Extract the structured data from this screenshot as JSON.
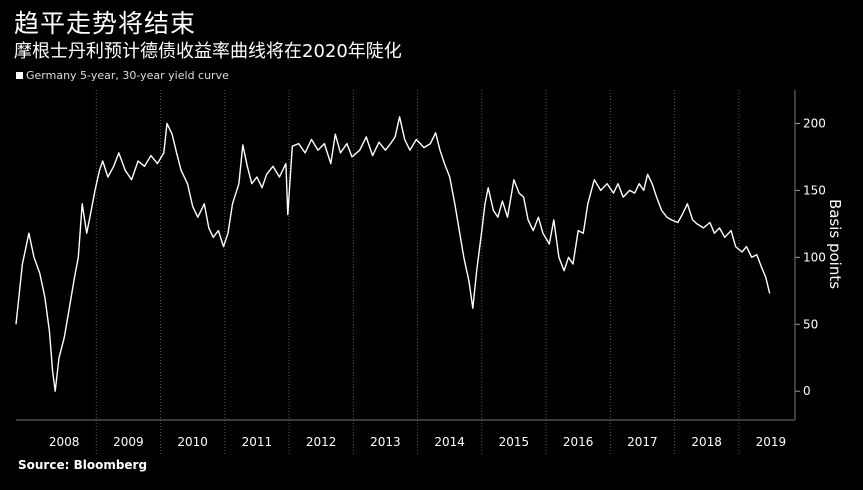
{
  "title": "趋平走势将结束",
  "subtitle": "摩根士丹利预计德债收益率曲线将在2020年陡化",
  "source": "Source: Bloomberg",
  "chart_data": {
    "type": "line",
    "legend_placement": "top-left",
    "grid": "vertical lines at year boundaries",
    "series": [
      {
        "name": "Germany 5-year, 30-year yield curve",
        "color": "#ffffff",
        "points": [
          [
            2007.75,
            50
          ],
          [
            2007.85,
            95
          ],
          [
            2007.95,
            118
          ],
          [
            2008.03,
            100
          ],
          [
            2008.12,
            88
          ],
          [
            2008.2,
            70
          ],
          [
            2008.27,
            45
          ],
          [
            2008.32,
            15
          ],
          [
            2008.36,
            0
          ],
          [
            2008.42,
            25
          ],
          [
            2008.5,
            40
          ],
          [
            2008.58,
            62
          ],
          [
            2008.66,
            85
          ],
          [
            2008.72,
            100
          ],
          [
            2008.78,
            140
          ],
          [
            2008.85,
            118
          ],
          [
            2008.9,
            130
          ],
          [
            2008.98,
            150
          ],
          [
            2009.05,
            165
          ],
          [
            2009.1,
            172
          ],
          [
            2009.18,
            160
          ],
          [
            2009.27,
            168
          ],
          [
            2009.35,
            178
          ],
          [
            2009.45,
            165
          ],
          [
            2009.55,
            158
          ],
          [
            2009.65,
            172
          ],
          [
            2009.75,
            168
          ],
          [
            2009.85,
            176
          ],
          [
            2009.95,
            170
          ],
          [
            2010.05,
            178
          ],
          [
            2010.1,
            200
          ],
          [
            2010.18,
            192
          ],
          [
            2010.25,
            178
          ],
          [
            2010.32,
            165
          ],
          [
            2010.42,
            155
          ],
          [
            2010.5,
            138
          ],
          [
            2010.58,
            130
          ],
          [
            2010.68,
            140
          ],
          [
            2010.75,
            122
          ],
          [
            2010.82,
            115
          ],
          [
            2010.9,
            120
          ],
          [
            2010.98,
            108
          ],
          [
            2011.05,
            118
          ],
          [
            2011.12,
            140
          ],
          [
            2011.22,
            155
          ],
          [
            2011.28,
            184
          ],
          [
            2011.35,
            168
          ],
          [
            2011.42,
            155
          ],
          [
            2011.5,
            160
          ],
          [
            2011.58,
            152
          ],
          [
            2011.65,
            162
          ],
          [
            2011.75,
            168
          ],
          [
            2011.85,
            160
          ],
          [
            2011.95,
            170
          ],
          [
            2011.98,
            132
          ],
          [
            2012.05,
            183
          ],
          [
            2012.15,
            185
          ],
          [
            2012.25,
            178
          ],
          [
            2012.35,
            188
          ],
          [
            2012.45,
            180
          ],
          [
            2012.55,
            185
          ],
          [
            2012.65,
            170
          ],
          [
            2012.72,
            192
          ],
          [
            2012.8,
            178
          ],
          [
            2012.9,
            185
          ],
          [
            2012.98,
            175
          ],
          [
            2013.1,
            180
          ],
          [
            2013.2,
            190
          ],
          [
            2013.3,
            176
          ],
          [
            2013.4,
            186
          ],
          [
            2013.5,
            180
          ],
          [
            2013.58,
            185
          ],
          [
            2013.65,
            190
          ],
          [
            2013.72,
            205
          ],
          [
            2013.8,
            188
          ],
          [
            2013.88,
            180
          ],
          [
            2013.98,
            188
          ],
          [
            2014.1,
            182
          ],
          [
            2014.2,
            185
          ],
          [
            2014.28,
            193
          ],
          [
            2014.35,
            180
          ],
          [
            2014.42,
            170
          ],
          [
            2014.5,
            160
          ],
          [
            2014.58,
            140
          ],
          [
            2014.65,
            120
          ],
          [
            2014.72,
            100
          ],
          [
            2014.8,
            82
          ],
          [
            2014.86,
            62
          ],
          [
            2014.92,
            90
          ],
          [
            2015.0,
            120
          ],
          [
            2015.05,
            140
          ],
          [
            2015.1,
            152
          ],
          [
            2015.18,
            135
          ],
          [
            2015.25,
            130
          ],
          [
            2015.32,
            142
          ],
          [
            2015.4,
            130
          ],
          [
            2015.5,
            158
          ],
          [
            2015.58,
            148
          ],
          [
            2015.65,
            145
          ],
          [
            2015.72,
            128
          ],
          [
            2015.8,
            120
          ],
          [
            2015.88,
            130
          ],
          [
            2015.95,
            118
          ],
          [
            2016.05,
            110
          ],
          [
            2016.12,
            128
          ],
          [
            2016.2,
            100
          ],
          [
            2016.28,
            90
          ],
          [
            2016.35,
            100
          ],
          [
            2016.42,
            95
          ],
          [
            2016.5,
            120
          ],
          [
            2016.58,
            118
          ],
          [
            2016.65,
            140
          ],
          [
            2016.75,
            158
          ],
          [
            2016.85,
            150
          ],
          [
            2016.95,
            155
          ],
          [
            2017.05,
            148
          ],
          [
            2017.12,
            155
          ],
          [
            2017.2,
            145
          ],
          [
            2017.3,
            150
          ],
          [
            2017.38,
            148
          ],
          [
            2017.45,
            155
          ],
          [
            2017.52,
            150
          ],
          [
            2017.58,
            162
          ],
          [
            2017.65,
            155
          ],
          [
            2017.72,
            145
          ],
          [
            2017.8,
            135
          ],
          [
            2017.88,
            130
          ],
          [
            2017.95,
            128
          ],
          [
            2018.05,
            126
          ],
          [
            2018.12,
            132
          ],
          [
            2018.2,
            140
          ],
          [
            2018.28,
            128
          ],
          [
            2018.35,
            125
          ],
          [
            2018.45,
            122
          ],
          [
            2018.55,
            126
          ],
          [
            2018.62,
            118
          ],
          [
            2018.7,
            122
          ],
          [
            2018.78,
            115
          ],
          [
            2018.88,
            120
          ],
          [
            2018.95,
            108
          ],
          [
            2019.05,
            104
          ],
          [
            2019.12,
            108
          ],
          [
            2019.2,
            100
          ],
          [
            2019.28,
            102
          ],
          [
            2019.36,
            92
          ],
          [
            2019.42,
            85
          ],
          [
            2019.48,
            73
          ]
        ]
      }
    ],
    "xlabel": "",
    "ylabel": "Basis points",
    "x_tick_labels": [
      "2008",
      "2009",
      "2010",
      "2011",
      "2012",
      "2013",
      "2014",
      "2015",
      "2016",
      "2017",
      "2018",
      "2019"
    ],
    "xlim": [
      2007.75,
      2019.75
    ],
    "y_ticks": [
      0,
      50,
      100,
      150,
      200
    ],
    "ylim": [
      -20,
      225
    ],
    "y_axis_side": "right"
  }
}
